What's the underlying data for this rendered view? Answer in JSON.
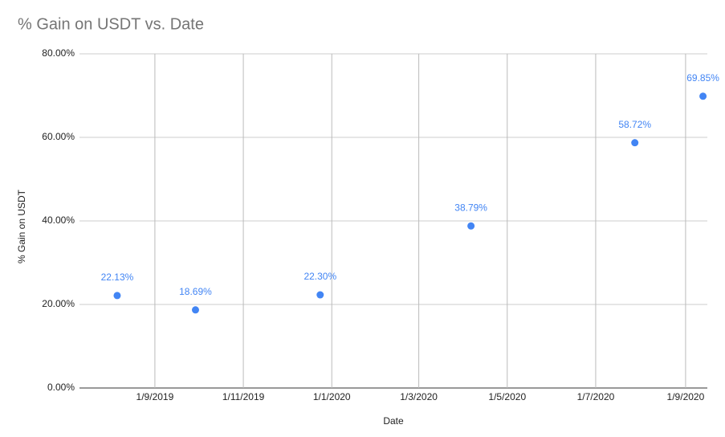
{
  "chart_data": {
    "type": "scatter",
    "title": "% Gain on USDT vs. Date",
    "x_label": "Date",
    "y_label": "% Gain on USDT",
    "x": [
      "2019-08-06",
      "2019-09-29",
      "2019-12-24",
      "2020-04-06",
      "2020-07-28",
      "2020-09-13"
    ],
    "series": [
      {
        "name": "% Gain on USDT",
        "color": "#4285f4",
        "values": [
          22.13,
          18.69,
          22.3,
          38.79,
          58.72,
          69.85
        ],
        "value_labels": [
          "22.13%",
          "18.69%",
          "22.30%",
          "38.79%",
          "58.72%",
          "69.85%"
        ]
      }
    ],
    "xlim": [
      "2019-07-11",
      "2020-09-16"
    ],
    "xticks": [
      {
        "value": "2019-09-01",
        "label": "1/9/2019"
      },
      {
        "value": "2019-11-01",
        "label": "1/11/2019"
      },
      {
        "value": "2020-01-01",
        "label": "1/1/2020"
      },
      {
        "value": "2020-03-01",
        "label": "1/3/2020"
      },
      {
        "value": "2020-05-01",
        "label": "1/5/2020"
      },
      {
        "value": "2020-07-01",
        "label": "1/7/2020"
      },
      {
        "value": "2020-09-01",
        "label": "1/9/2020"
      }
    ],
    "ylim": [
      0,
      80
    ],
    "yticks": [
      {
        "value": 0,
        "label": "0.00%"
      },
      {
        "value": 20,
        "label": "20.00%"
      },
      {
        "value": 40,
        "label": "40.00%"
      },
      {
        "value": 60,
        "label": "60.00%"
      },
      {
        "value": 80,
        "label": "80.00%"
      }
    ],
    "grid": true
  }
}
